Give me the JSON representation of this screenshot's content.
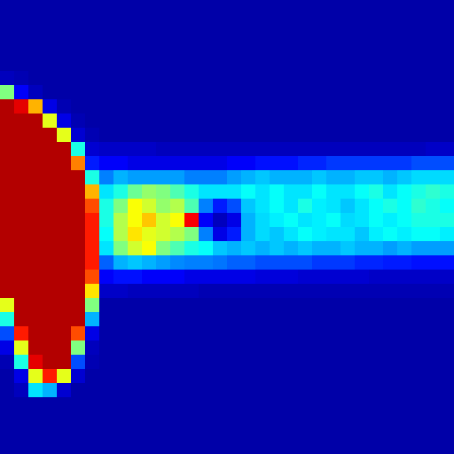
{
  "chart_data": {
    "type": "heatmap",
    "color": "jet",
    "zlim": [
      0,
      100
    ],
    "tick_labels": false,
    "grid": false,
    "cells": [
      [
        4,
        4,
        4,
        4,
        4,
        4,
        4,
        4,
        4,
        4,
        4,
        4,
        4,
        4,
        4,
        4,
        4,
        4,
        4,
        4,
        4,
        4,
        4,
        4,
        4,
        4,
        4,
        4,
        4,
        4,
        4,
        4
      ],
      [
        4,
        4,
        4,
        4,
        4,
        4,
        4,
        4,
        4,
        4,
        4,
        4,
        4,
        4,
        4,
        4,
        4,
        4,
        4,
        4,
        4,
        4,
        4,
        4,
        4,
        4,
        4,
        4,
        4,
        4,
        4,
        4
      ],
      [
        4,
        4,
        4,
        4,
        4,
        4,
        4,
        4,
        4,
        4,
        4,
        4,
        4,
        4,
        4,
        4,
        4,
        4,
        4,
        4,
        4,
        4,
        4,
        4,
        4,
        4,
        4,
        4,
        4,
        4,
        4,
        4
      ],
      [
        4,
        4,
        4,
        4,
        4,
        4,
        4,
        4,
        4,
        4,
        4,
        4,
        4,
        4,
        4,
        4,
        4,
        4,
        4,
        4,
        4,
        4,
        4,
        4,
        4,
        4,
        4,
        4,
        4,
        4,
        4,
        4
      ],
      [
        4,
        4,
        4,
        4,
        4,
        4,
        4,
        4,
        4,
        4,
        4,
        4,
        4,
        4,
        4,
        4,
        4,
        4,
        4,
        4,
        4,
        4,
        4,
        4,
        4,
        4,
        4,
        4,
        4,
        4,
        4,
        4
      ],
      [
        6,
        5,
        4,
        4,
        4,
        4,
        4,
        4,
        4,
        4,
        4,
        4,
        4,
        4,
        4,
        4,
        4,
        4,
        4,
        4,
        4,
        4,
        4,
        4,
        4,
        4,
        4,
        4,
        4,
        4,
        4,
        4
      ],
      [
        50,
        12,
        6,
        4,
        4,
        4,
        4,
        4,
        4,
        4,
        4,
        4,
        4,
        4,
        4,
        4,
        4,
        4,
        4,
        4,
        4,
        4,
        4,
        4,
        4,
        4,
        4,
        4,
        4,
        4,
        4,
        4
      ],
      [
        95,
        90,
        70,
        10,
        5,
        4,
        4,
        4,
        4,
        4,
        4,
        4,
        4,
        4,
        4,
        4,
        4,
        4,
        4,
        4,
        4,
        4,
        4,
        4,
        4,
        4,
        4,
        4,
        4,
        4,
        4,
        4
      ],
      [
        95,
        95,
        95,
        60,
        10,
        5,
        4,
        4,
        4,
        4,
        4,
        4,
        4,
        4,
        4,
        4,
        4,
        4,
        4,
        4,
        4,
        4,
        4,
        4,
        4,
        4,
        4,
        4,
        4,
        4,
        4,
        4
      ],
      [
        95,
        95,
        95,
        95,
        60,
        8,
        5,
        4,
        4,
        4,
        4,
        4,
        4,
        4,
        4,
        4,
        4,
        4,
        4,
        4,
        4,
        4,
        4,
        4,
        4,
        4,
        4,
        4,
        4,
        4,
        4,
        4
      ],
      [
        95,
        95,
        95,
        95,
        95,
        40,
        8,
        7,
        7,
        7,
        7,
        6,
        6,
        6,
        6,
        6,
        6,
        6,
        6,
        6,
        6,
        6,
        6,
        6,
        6,
        6,
        6,
        6,
        6,
        6,
        7,
        7
      ],
      [
        95,
        95,
        95,
        95,
        95,
        75,
        15,
        12,
        12,
        10,
        10,
        10,
        10,
        10,
        10,
        10,
        12,
        12,
        14,
        14,
        14,
        16,
        16,
        18,
        18,
        18,
        18,
        18,
        18,
        20,
        20,
        20
      ],
      [
        95,
        95,
        95,
        95,
        95,
        95,
        40,
        25,
        30,
        28,
        28,
        28,
        28,
        25,
        25,
        25,
        28,
        30,
        32,
        30,
        30,
        30,
        32,
        30,
        30,
        32,
        32,
        30,
        32,
        34,
        34,
        34
      ],
      [
        95,
        95,
        95,
        95,
        95,
        95,
        70,
        35,
        40,
        48,
        52,
        50,
        45,
        40,
        35,
        35,
        35,
        38,
        35,
        38,
        35,
        35,
        38,
        35,
        35,
        38,
        40,
        35,
        38,
        40,
        42,
        40
      ],
      [
        95,
        95,
        95,
        95,
        95,
        95,
        80,
        40,
        50,
        62,
        58,
        52,
        55,
        45,
        25,
        15,
        20,
        32,
        35,
        38,
        35,
        40,
        36,
        35,
        32,
        35,
        38,
        40,
        38,
        42,
        40,
        38
      ],
      [
        95,
        95,
        95,
        95,
        95,
        95,
        85,
        40,
        55,
        62,
        68,
        58,
        62,
        88,
        12,
        6,
        10,
        30,
        34,
        36,
        38,
        35,
        36,
        38,
        34,
        35,
        38,
        36,
        38,
        40,
        40,
        40
      ],
      [
        95,
        95,
        95,
        95,
        95,
        95,
        85,
        38,
        55,
        65,
        60,
        58,
        55,
        50,
        25,
        10,
        15,
        30,
        34,
        32,
        35,
        38,
        36,
        35,
        35,
        32,
        36,
        38,
        36,
        38,
        38,
        36
      ],
      [
        95,
        95,
        95,
        95,
        95,
        95,
        85,
        35,
        50,
        58,
        62,
        50,
        45,
        40,
        38,
        32,
        30,
        32,
        30,
        32,
        30,
        32,
        30,
        30,
        32,
        30,
        30,
        28,
        30,
        28,
        28,
        28
      ],
      [
        95,
        95,
        95,
        95,
        95,
        95,
        85,
        22,
        30,
        32,
        30,
        28,
        26,
        25,
        25,
        24,
        22,
        22,
        20,
        20,
        20,
        20,
        18,
        18,
        18,
        16,
        16,
        15,
        15,
        14,
        14,
        14
      ],
      [
        95,
        95,
        95,
        95,
        95,
        95,
        80,
        12,
        14,
        14,
        12,
        12,
        12,
        10,
        10,
        10,
        10,
        10,
        9,
        9,
        9,
        8,
        8,
        8,
        8,
        8,
        7,
        7,
        7,
        7,
        7,
        7
      ],
      [
        95,
        95,
        95,
        95,
        95,
        95,
        65,
        7,
        7,
        6,
        6,
        6,
        6,
        6,
        5,
        5,
        5,
        5,
        5,
        5,
        5,
        5,
        5,
        5,
        5,
        5,
        5,
        5,
        5,
        5,
        5,
        5
      ],
      [
        60,
        95,
        95,
        95,
        95,
        95,
        50,
        4,
        4,
        4,
        4,
        4,
        4,
        4,
        4,
        4,
        4,
        4,
        4,
        4,
        4,
        4,
        4,
        4,
        4,
        4,
        4,
        4,
        4,
        4,
        4,
        4
      ],
      [
        40,
        95,
        95,
        95,
        95,
        95,
        30,
        4,
        4,
        4,
        4,
        4,
        4,
        4,
        4,
        4,
        4,
        4,
        4,
        4,
        4,
        4,
        4,
        4,
        4,
        4,
        4,
        4,
        4,
        4,
        4,
        4
      ],
      [
        20,
        85,
        95,
        95,
        95,
        80,
        10,
        4,
        4,
        4,
        4,
        4,
        4,
        4,
        4,
        4,
        4,
        4,
        4,
        4,
        4,
        4,
        4,
        4,
        4,
        4,
        4,
        4,
        4,
        4,
        4,
        4
      ],
      [
        10,
        60,
        95,
        95,
        95,
        50,
        6,
        4,
        4,
        4,
        4,
        4,
        4,
        4,
        4,
        4,
        4,
        4,
        4,
        4,
        4,
        4,
        4,
        4,
        4,
        4,
        4,
        4,
        4,
        4,
        4,
        4
      ],
      [
        5,
        40,
        90,
        95,
        95,
        20,
        5,
        4,
        4,
        4,
        4,
        4,
        4,
        4,
        4,
        4,
        4,
        4,
        4,
        4,
        4,
        4,
        4,
        4,
        4,
        4,
        4,
        4,
        4,
        4,
        4,
        4
      ],
      [
        4,
        10,
        60,
        85,
        60,
        8,
        4,
        4,
        4,
        4,
        4,
        4,
        4,
        4,
        4,
        4,
        4,
        4,
        4,
        4,
        4,
        4,
        4,
        4,
        4,
        4,
        4,
        4,
        4,
        4,
        4,
        4
      ],
      [
        4,
        6,
        35,
        30,
        8,
        4,
        4,
        4,
        4,
        4,
        4,
        4,
        4,
        4,
        4,
        4,
        4,
        4,
        4,
        4,
        4,
        4,
        4,
        4,
        4,
        4,
        4,
        4,
        4,
        4,
        4,
        4
      ],
      [
        4,
        4,
        4,
        4,
        4,
        4,
        4,
        4,
        4,
        4,
        4,
        4,
        4,
        4,
        4,
        4,
        4,
        4,
        4,
        4,
        4,
        4,
        4,
        4,
        4,
        4,
        4,
        4,
        4,
        4,
        4,
        4
      ],
      [
        4,
        4,
        4,
        4,
        4,
        4,
        4,
        4,
        4,
        4,
        4,
        4,
        4,
        4,
        4,
        4,
        4,
        4,
        4,
        4,
        4,
        4,
        4,
        4,
        4,
        4,
        4,
        4,
        4,
        4,
        4,
        4
      ],
      [
        4,
        4,
        4,
        4,
        4,
        4,
        4,
        4,
        4,
        4,
        4,
        4,
        4,
        4,
        4,
        4,
        4,
        4,
        4,
        4,
        4,
        4,
        4,
        4,
        4,
        4,
        4,
        4,
        4,
        4,
        4,
        4
      ],
      [
        4,
        4,
        4,
        4,
        4,
        4,
        4,
        4,
        4,
        4,
        4,
        4,
        4,
        4,
        4,
        4,
        4,
        4,
        4,
        4,
        4,
        4,
        4,
        4,
        4,
        4,
        4,
        4,
        4,
        4,
        4,
        4
      ]
    ]
  }
}
